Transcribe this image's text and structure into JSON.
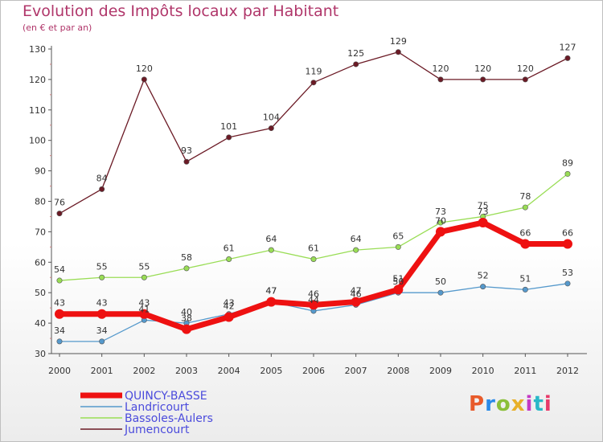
{
  "chart_data": {
    "type": "line",
    "title": "Evolution des Impôts locaux par Habitant",
    "subtitle": "(en € et par an)",
    "xlabel": "",
    "ylabel": "",
    "x": [
      "2000",
      "2001",
      "2002",
      "2003",
      "2004",
      "2005",
      "2006",
      "2007",
      "2008",
      "2009",
      "2010",
      "2011",
      "2012"
    ],
    "ylim": [
      30,
      130
    ],
    "yticks": [
      30,
      40,
      50,
      60,
      70,
      80,
      90,
      100,
      110,
      120,
      130
    ],
    "grid": false,
    "legend_position": "bottom-left",
    "series": [
      {
        "name": "Jumencourt",
        "color": "#6b1a25",
        "values": [
          76,
          84,
          120,
          93,
          101,
          104,
          119,
          125,
          129,
          120,
          120,
          120,
          127
        ]
      },
      {
        "name": "Bassoles-Aulers",
        "color": "#99dd55",
        "values": [
          54,
          55,
          55,
          58,
          61,
          64,
          61,
          64,
          65,
          73,
          75,
          78,
          89
        ]
      },
      {
        "name": "Landricourt",
        "color": "#5599cc",
        "values": [
          34,
          34,
          41,
          40,
          43,
          47,
          44,
          46,
          50,
          50,
          52,
          51,
          53
        ]
      },
      {
        "name": "QUINCY-BASSE",
        "color": "#ee1111",
        "values": [
          43,
          43,
          43,
          38,
          42,
          47,
          46,
          47,
          51,
          70,
          73,
          66,
          66
        ]
      }
    ],
    "legend_order": [
      "QUINCY-BASSE",
      "Landricourt",
      "Bassoles-Aulers",
      "Jumencourt"
    ]
  },
  "logo": {
    "text": "Proxiti",
    "colors": [
      "#e85a2a",
      "#2a8ae8",
      "#8bbf3a",
      "#e8b02a",
      "#c43ac4",
      "#2ab8c8",
      "#e83a6a"
    ]
  }
}
